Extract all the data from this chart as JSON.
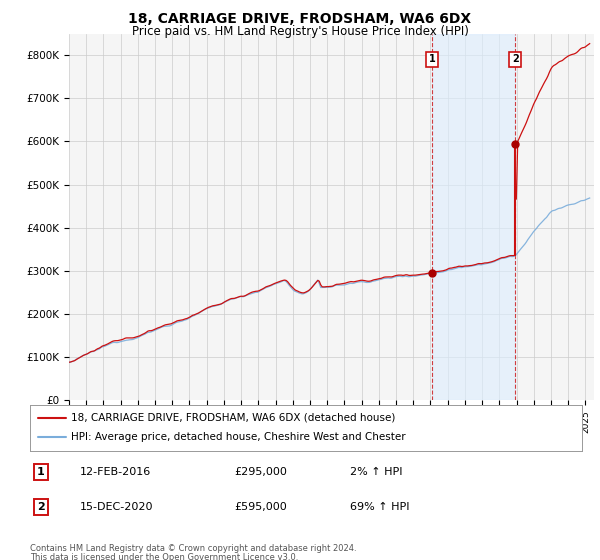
{
  "title": "18, CARRIAGE DRIVE, FRODSHAM, WA6 6DX",
  "subtitle": "Price paid vs. HM Land Registry's House Price Index (HPI)",
  "title_fontsize": 10,
  "subtitle_fontsize": 8.5,
  "background_color": "#ffffff",
  "plot_bg_color": "#f5f5f5",
  "grid_color": "#cccccc",
  "hpi_line_color": "#7aaddb",
  "price_line_color": "#cc1111",
  "marker_color": "#aa0000",
  "ylim": [
    0,
    850000
  ],
  "yticks": [
    0,
    100000,
    200000,
    300000,
    400000,
    500000,
    600000,
    700000,
    800000
  ],
  "xlim_start": 1995,
  "xlim_end": 2025.5,
  "sale1_year": 2016.08,
  "sale1_price": 295000,
  "sale2_year": 2020.92,
  "sale2_price": 595000,
  "shade_color": "#ddeeff",
  "shade_alpha": 0.6,
  "vline_color": "#cc1111",
  "vline_style": "--",
  "legend_items": [
    {
      "label": "18, CARRIAGE DRIVE, FRODSHAM, WA6 6DX (detached house)",
      "color": "#cc1111",
      "lw": 1.5
    },
    {
      "label": "HPI: Average price, detached house, Cheshire West and Chester",
      "color": "#7aaddb",
      "lw": 1.5
    }
  ],
  "table_rows": [
    {
      "num": "1",
      "date": "12-FEB-2016",
      "price": "£295,000",
      "pct": "2% ↑ HPI"
    },
    {
      "num": "2",
      "date": "15-DEC-2020",
      "price": "£595,000",
      "pct": "69% ↑ HPI"
    }
  ],
  "footer": "Contains HM Land Registry data © Crown copyright and database right 2024.\nThis data is licensed under the Open Government Licence v3.0.",
  "ann1_label": "1",
  "ann2_label": "2"
}
